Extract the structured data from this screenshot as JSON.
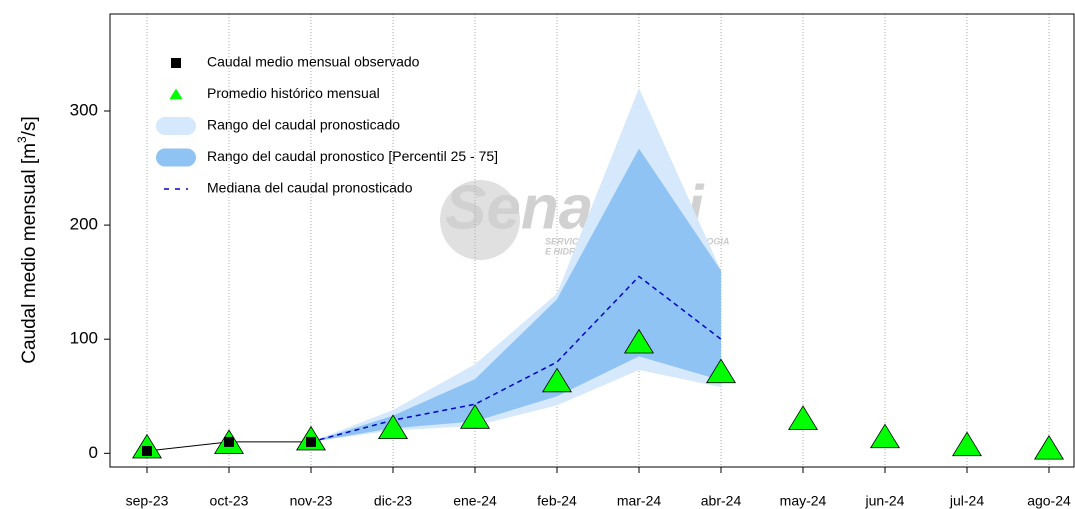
{
  "chart_data": {
    "type": "line",
    "ylabel_parts": [
      "Caudal medio mensual  [m",
      "3",
      "/s]"
    ],
    "watermark": {
      "title": "Senamhi",
      "subtitle_lines": [
        "SERVICIO NACIONAL DE METEOROLOGIA",
        "E HIDROLOGIA DEL PERU"
      ]
    },
    "categories": [
      "sep-23",
      "oct-23",
      "nov-23",
      "dic-23",
      "ene-24",
      "feb-24",
      "mar-24",
      "abr-24",
      "may-24",
      "jun-24",
      "jul-24",
      "ago-24"
    ],
    "ylim": [
      -12,
      385
    ],
    "yticks": [
      0,
      100,
      200,
      300
    ],
    "grid": true,
    "bands": [
      {
        "name": "Rango del caudal pronosticado",
        "color": "#d6e9fc",
        "low": [
          null,
          null,
          10,
          20,
          24,
          42,
          73,
          58,
          null,
          null,
          null,
          null
        ],
        "high": [
          null,
          null,
          10,
          38,
          78,
          140,
          320,
          160,
          null,
          null,
          null,
          null
        ]
      },
      {
        "name": "Rango del caudal pronostico [Percentil 25 - 75]",
        "color": "#8ec3f3",
        "low": [
          null,
          null,
          10,
          22,
          28,
          50,
          85,
          64,
          null,
          null,
          null,
          null
        ],
        "high": [
          null,
          null,
          10,
          33,
          65,
          135,
          267,
          160,
          null,
          null,
          null,
          null
        ]
      }
    ],
    "series": [
      {
        "name": "Caudal medio mensual observado",
        "color": "#000000",
        "marker": "square",
        "values": [
          2,
          10,
          10,
          null,
          null,
          null,
          null,
          null,
          null,
          null,
          null,
          null
        ]
      },
      {
        "name": "Promedio histórico mensual",
        "color": "#00ff00",
        "marker": "triangle",
        "values": [
          5,
          9,
          12,
          22,
          31,
          63,
          97,
          71,
          30,
          14,
          7,
          4
        ]
      },
      {
        "name": "Mediana del caudal pronosticado",
        "color": "#0000cc",
        "marker": "dash",
        "values": [
          null,
          null,
          10,
          29,
          43,
          80,
          155,
          100,
          null,
          null,
          null,
          null
        ]
      }
    ],
    "legend_order": [
      "series.0",
      "series.1",
      "bands.0",
      "bands.1",
      "series.2"
    ]
  }
}
